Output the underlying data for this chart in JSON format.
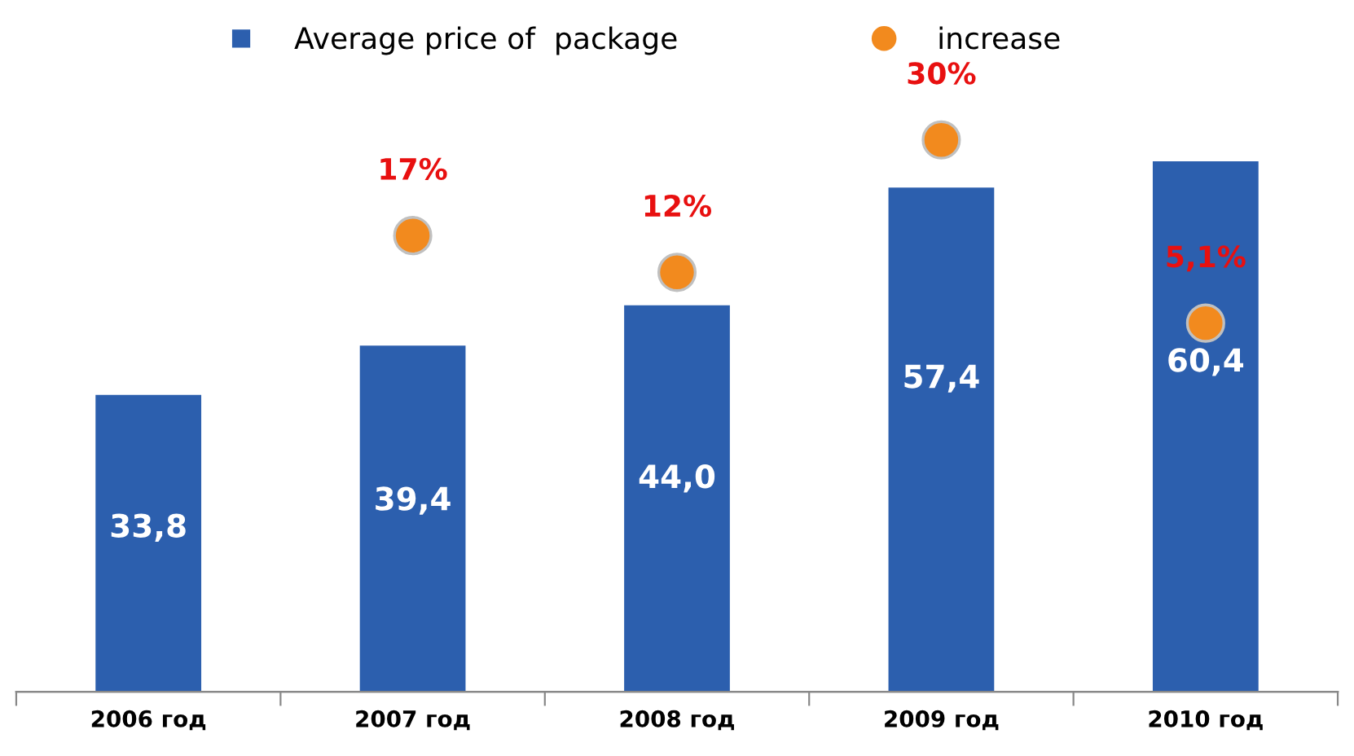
{
  "chart_data": {
    "type": "bar",
    "categories": [
      "2006 год",
      "2007 год",
      "2008 год",
      "2009 год",
      "2010 год"
    ],
    "series": [
      {
        "name": "Average price of  package",
        "color": "#2c5fae",
        "values": [
          33.8,
          39.4,
          44.0,
          57.4,
          60.4
        ],
        "value_labels": [
          "33,8",
          "39,4",
          "44,0",
          "57,4",
          "60,4"
        ]
      },
      {
        "name": "increase",
        "type": "scatter",
        "axis": "y2",
        "color": "#f28a1e",
        "marker": "circle",
        "values": [
          null,
          17,
          12,
          30,
          5.1
        ],
        "value_labels": [
          null,
          "17%",
          "12%",
          "30%",
          "5,1%"
        ]
      }
    ],
    "tick_labels": "x",
    "legend": "top",
    "grid": false
  }
}
